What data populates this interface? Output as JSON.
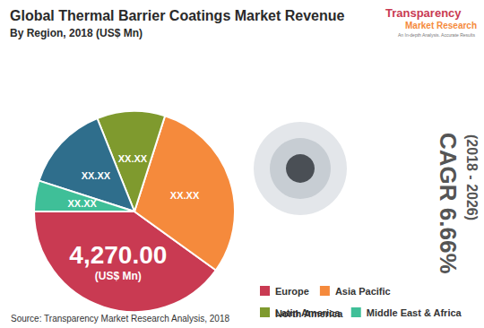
{
  "chart_data": {
    "type": "pie",
    "title": "Global Thermal Barrier Coatings Market Revenue",
    "subtitle": "By Region, 2018 (US$ Mn)",
    "categories": [
      "Europe",
      "Asia Pacific",
      "North America",
      "Latin America",
      "Middle East & Africa"
    ],
    "values": [
      4270,
      3200,
      1490,
      1170,
      530
    ],
    "value_labels": [
      "4,270.00",
      "XX.XX",
      "XX.XX",
      "XX.XX",
      "XX.XX"
    ],
    "colors": [
      "#c93a52",
      "#f58a3c",
      "#2f6e8c",
      "#7f9a2e",
      "#3fbf98"
    ],
    "data_labels": true,
    "legend": "bottom right",
    "annotations": [
      "(US$ Mn)",
      "CAGR 6.66%",
      "(2018 - 2026)",
      "Transparency",
      "Market Research",
      "An In-depth Analysis. Accurate Results"
    ],
    "source": "Source: Transparency Market Research Analysis, 2018"
  }
}
